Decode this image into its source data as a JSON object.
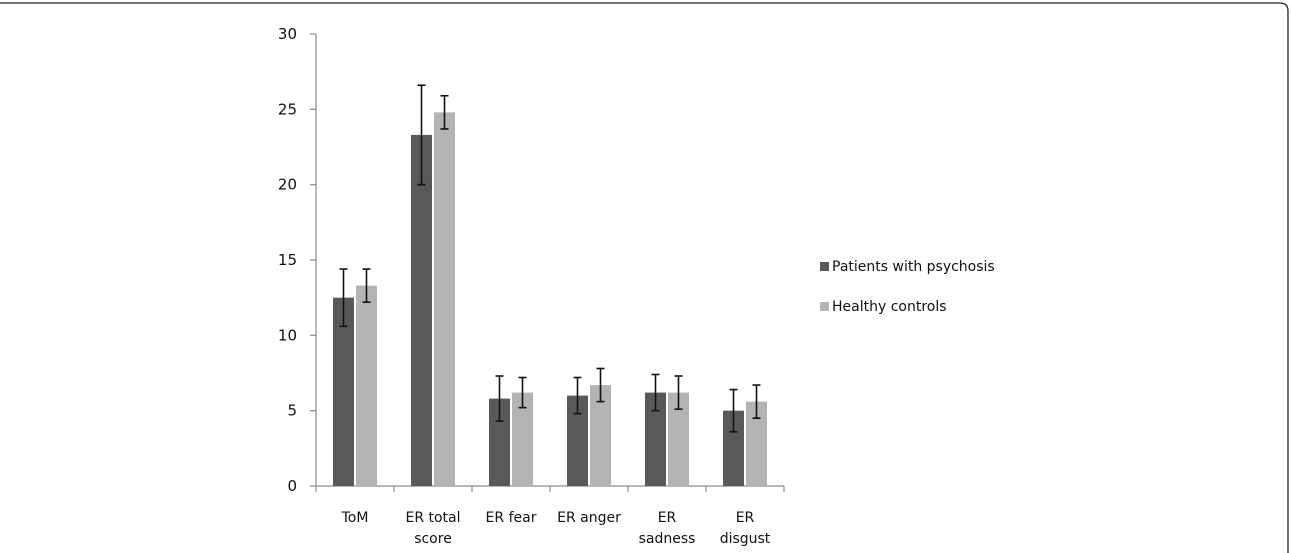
{
  "chart_data": {
    "type": "bar",
    "categories": [
      [
        "ToM"
      ],
      [
        "ER total",
        "score"
      ],
      [
        "ER fear"
      ],
      [
        "ER anger"
      ],
      [
        "ER",
        "sadness"
      ],
      [
        "ER",
        "disgust"
      ]
    ],
    "series": [
      {
        "name": "Patients with psychosis",
        "color": "#595959",
        "values": [
          12.5,
          23.3,
          5.8,
          6.0,
          6.2,
          5.0
        ],
        "errors": [
          1.9,
          3.3,
          1.5,
          1.2,
          1.2,
          1.4
        ]
      },
      {
        "name": "Healthy controls",
        "color": "#b3b3b3",
        "values": [
          13.3,
          24.8,
          6.2,
          6.7,
          6.2,
          5.6
        ],
        "errors": [
          1.1,
          1.1,
          1.0,
          1.1,
          1.1,
          1.1
        ]
      }
    ],
    "ylim": [
      0,
      30
    ],
    "yticks": [
      0,
      5,
      10,
      15,
      20,
      25,
      30
    ],
    "legend_position": "right",
    "grid": false
  }
}
